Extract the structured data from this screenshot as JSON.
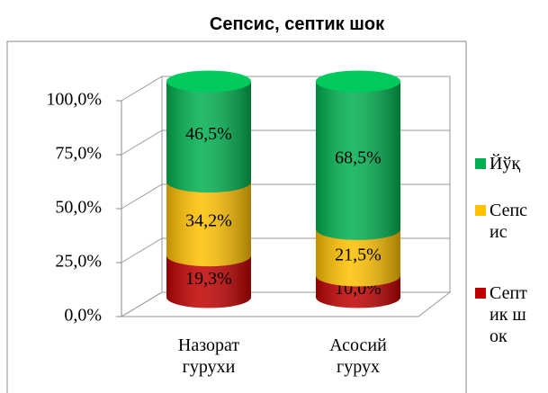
{
  "chart_data": {
    "type": "bar3d-stacked",
    "title": "Сепсис, септик шок",
    "categories": [
      "Назорат гурухи",
      "Асосий гурух"
    ],
    "series": [
      {
        "name": "Септик шок",
        "color": "#c00000",
        "values": [
          19.3,
          10.0
        ],
        "value_labels": [
          "19,3%",
          "10,0%"
        ]
      },
      {
        "name": "Сепсис",
        "color": "#ffc000",
        "values": [
          34.2,
          21.5
        ],
        "value_labels": [
          "34,2%",
          "21,5%"
        ]
      },
      {
        "name": "Йўқ",
        "color": "#00b050",
        "values": [
          46.5,
          68.5
        ],
        "value_labels": [
          "46,5%",
          "68,5%"
        ]
      }
    ],
    "ylim": [
      0,
      100
    ],
    "yticks": [
      {
        "value": 0,
        "label": "0,0%"
      },
      {
        "value": 25,
        "label": "25,0%"
      },
      {
        "value": 50,
        "label": "50,0%"
      },
      {
        "value": 75,
        "label": "75,0%"
      },
      {
        "value": 100,
        "label": "100,0%"
      }
    ],
    "grid": true,
    "legend": "right"
  }
}
